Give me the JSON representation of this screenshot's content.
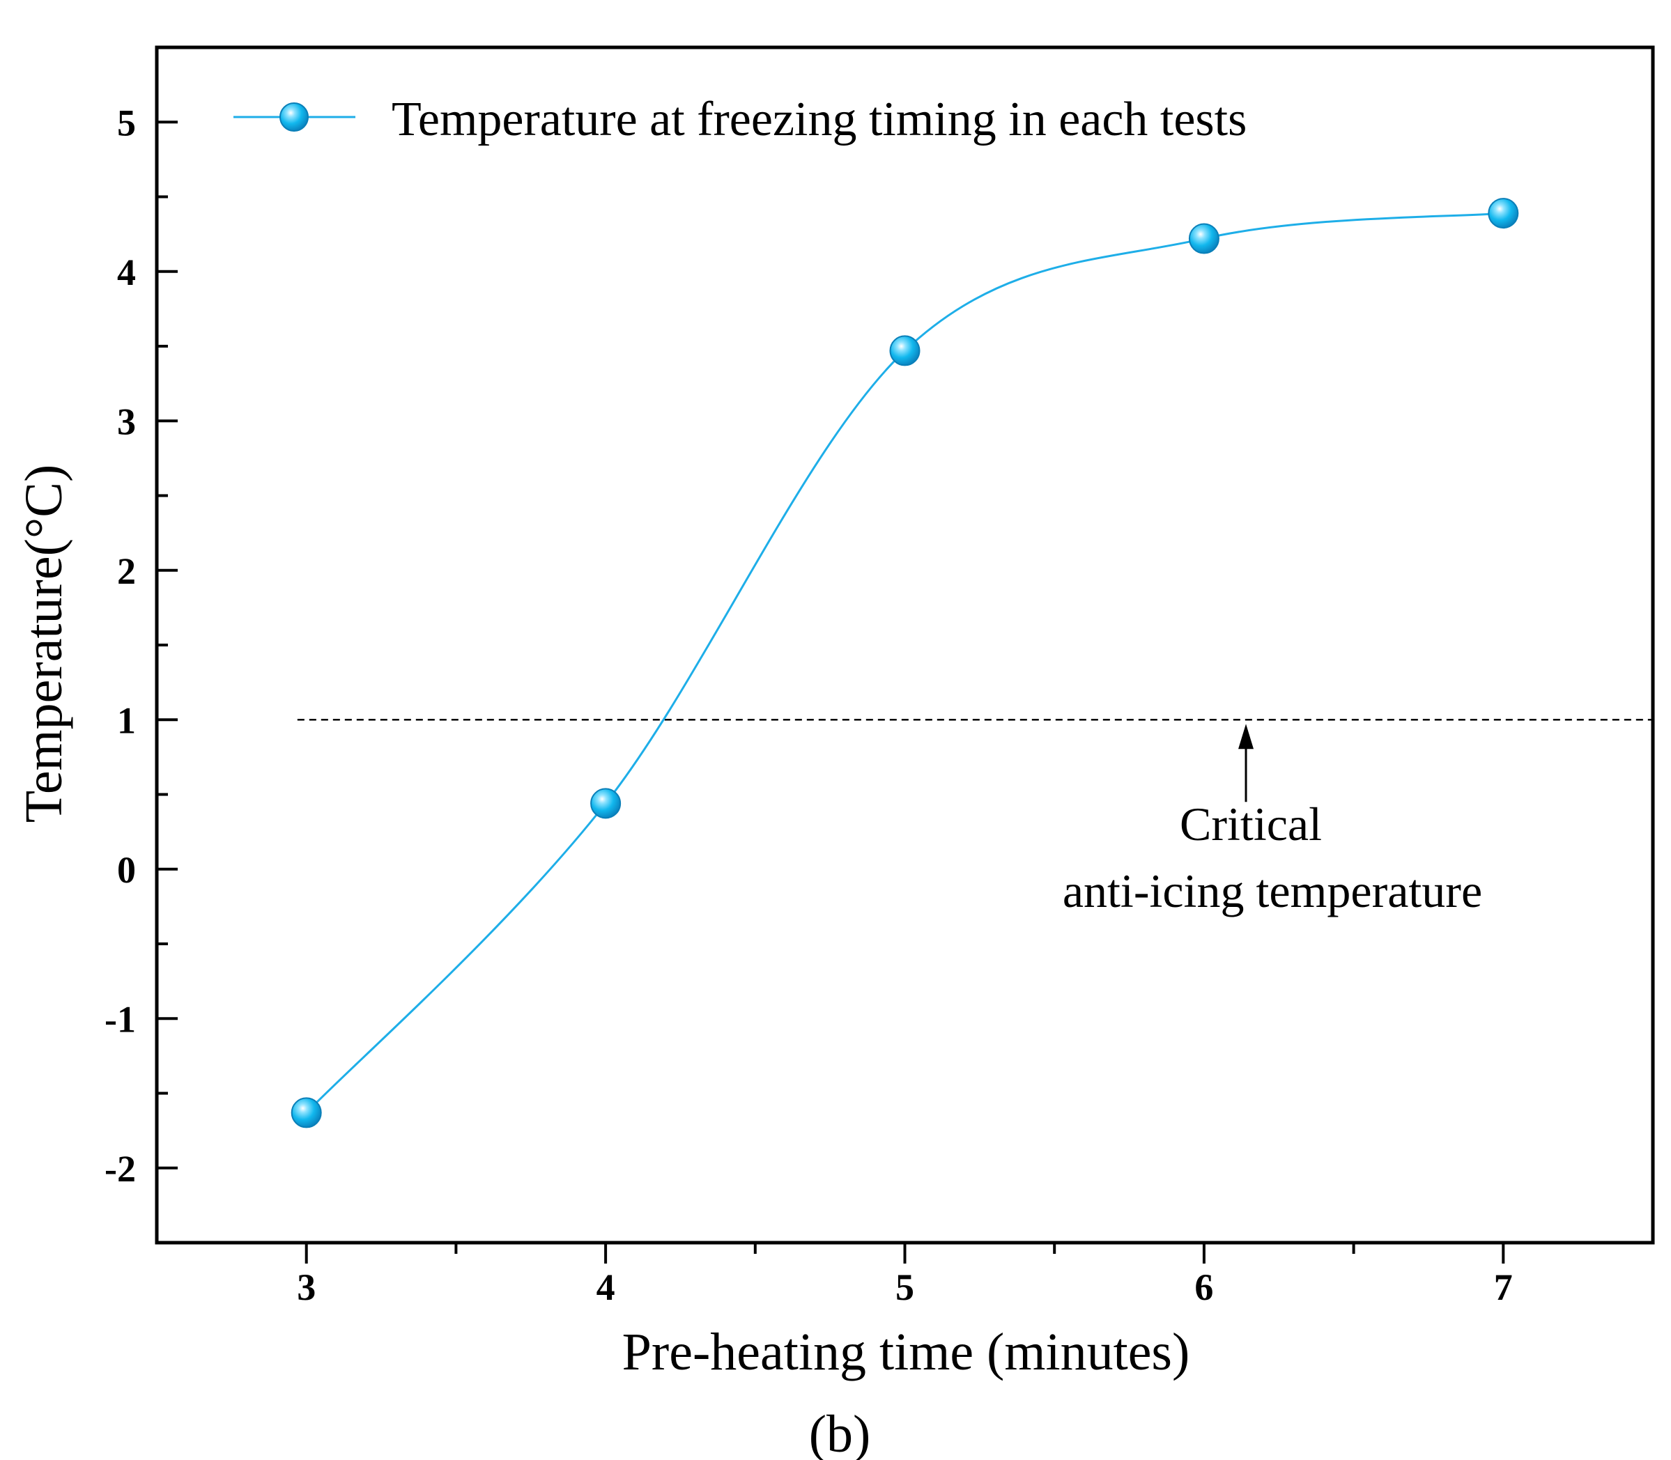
{
  "chart_data": {
    "type": "line",
    "smooth": true,
    "series": [
      {
        "name": "Temperature at freezing timing in each tests",
        "x": [
          3,
          4,
          5,
          6,
          7
        ],
        "y": [
          -1.63,
          0.44,
          3.47,
          4.22,
          4.39
        ],
        "color": "#1eaee8",
        "marker": "sphere"
      }
    ],
    "xlabel": "Pre-heating time (minutes)",
    "ylabel": "Temperature(°C)",
    "xlim": [
      2.5,
      7.5
    ],
    "ylim": [
      -2.5,
      5.5
    ],
    "xticks": [
      3,
      4,
      5,
      6,
      7
    ],
    "xtick_labels": [
      "3",
      "4",
      "5",
      "6",
      "7"
    ],
    "yticks": [
      -2,
      -1,
      0,
      1,
      2,
      3,
      4,
      5
    ],
    "ytick_labels": [
      "-2",
      "-1",
      "0",
      "1",
      "2",
      "3",
      "4",
      "5"
    ],
    "reference_line": {
      "y": 1,
      "style": "dashed"
    },
    "annotation": {
      "line1": "Critical",
      "line2": "anti-icing temperature",
      "arrow_to": {
        "x": 6.14,
        "y": 1
      }
    },
    "legend_position": "top-left",
    "grid": false,
    "panel_label": "(b)"
  }
}
